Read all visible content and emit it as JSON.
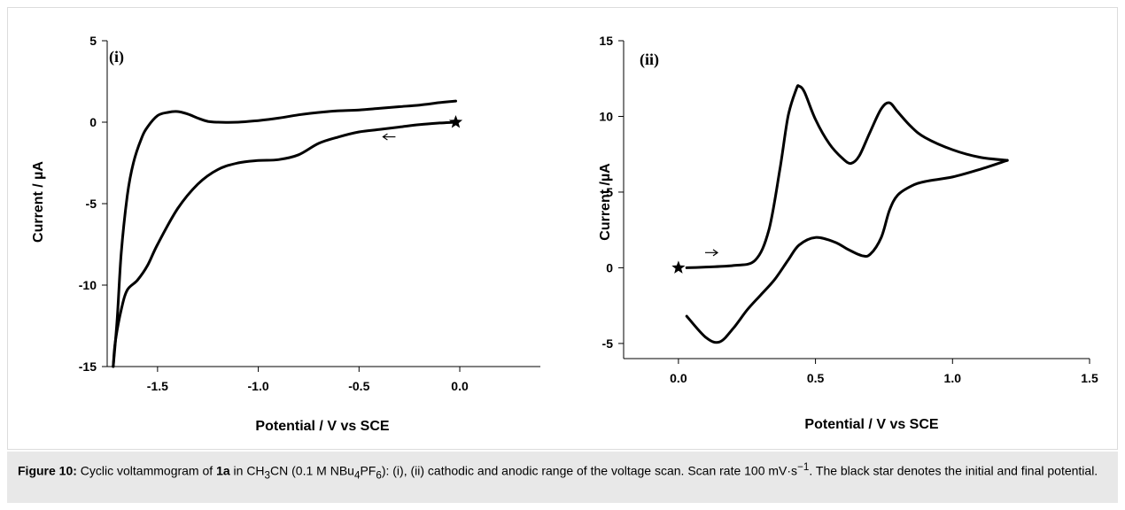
{
  "chart_data": [
    {
      "type": "line",
      "panel_label": "(i)",
      "xlabel": "Potential / V vs SCE",
      "ylabel": "Current / µA",
      "xlim": [
        -1.75,
        0.4
      ],
      "ylim": [
        -15,
        5
      ],
      "xticks": [
        -1.5,
        -1.0,
        -0.5,
        0.0
      ],
      "xtick_labels": [
        "-1.5",
        "-1.0",
        "-0.5",
        "0.0"
      ],
      "yticks": [
        5,
        0,
        -5,
        -10,
        -15
      ],
      "ytick_labels": [
        "5",
        "0",
        "-5",
        "-10",
        "-15"
      ],
      "grid": false,
      "series": [
        {
          "x": [
            -0.02,
            -0.1,
            -0.2,
            -0.3,
            -0.4,
            -0.5,
            -0.6,
            -0.7,
            -0.8,
            -0.9,
            -1.0,
            -1.1,
            -1.2,
            -1.3,
            -1.4,
            -1.5,
            -1.55,
            -1.6,
            -1.65,
            -1.68,
            -1.71,
            -1.72
          ],
          "y": [
            0.0,
            -0.05,
            -0.15,
            -0.3,
            -0.45,
            -0.6,
            -0.9,
            -1.3,
            -2.0,
            -2.3,
            -2.35,
            -2.5,
            -2.9,
            -3.8,
            -5.3,
            -7.5,
            -8.8,
            -9.7,
            -10.3,
            -11.5,
            -13.5,
            -15.0
          ]
        },
        {
          "x": [
            -1.72,
            -1.7,
            -1.68,
            -1.65,
            -1.62,
            -1.58,
            -1.55,
            -1.5,
            -1.45,
            -1.4,
            -1.35,
            -1.3,
            -1.25,
            -1.2,
            -1.1,
            -1.0,
            -0.9,
            -0.8,
            -0.7,
            -0.6,
            -0.5,
            -0.4,
            -0.3,
            -0.2,
            -0.1,
            -0.02
          ],
          "y": [
            -15.0,
            -12.0,
            -8.0,
            -4.5,
            -2.5,
            -1.0,
            -0.3,
            0.4,
            0.6,
            0.65,
            0.5,
            0.25,
            0.05,
            0.0,
            0.0,
            0.1,
            0.25,
            0.45,
            0.6,
            0.7,
            0.75,
            0.85,
            0.95,
            1.05,
            1.2,
            1.3
          ]
        }
      ],
      "annotations": [
        {
          "type": "arrow",
          "direction": "left",
          "x": -0.35,
          "y": -0.9
        },
        {
          "type": "star",
          "label": "initial/final potential",
          "x": -0.02,
          "y": 0.0
        }
      ]
    },
    {
      "type": "line",
      "panel_label": "(ii)",
      "xlabel": "Potential / V vs SCE",
      "ylabel": "Current /µA",
      "xlim": [
        -0.2,
        1.5
      ],
      "ylim": [
        -6,
        15
      ],
      "xticks": [
        0.0,
        0.5,
        1.0,
        1.5
      ],
      "xtick_labels": [
        "0.0",
        "0.5",
        "1.0",
        "1.5"
      ],
      "yticks": [
        15,
        10,
        5,
        0,
        -5
      ],
      "ytick_labels": [
        "15",
        "10",
        "5",
        "0",
        "-5"
      ],
      "grid": false,
      "series": [
        {
          "x": [
            0.03,
            0.1,
            0.2,
            0.28,
            0.33,
            0.37,
            0.4,
            0.43,
            0.44,
            0.46,
            0.5,
            0.55,
            0.6,
            0.63,
            0.66,
            0.7,
            0.74,
            0.77,
            0.8,
            0.85,
            0.9,
            1.0,
            1.1,
            1.2
          ],
          "y": [
            0.0,
            0.05,
            0.15,
            0.5,
            2.5,
            6.5,
            10.0,
            11.8,
            12.0,
            11.6,
            9.8,
            8.2,
            7.2,
            6.9,
            7.4,
            9.0,
            10.5,
            10.9,
            10.3,
            9.3,
            8.6,
            7.8,
            7.3,
            7.1
          ]
        },
        {
          "x": [
            1.2,
            1.1,
            1.0,
            0.9,
            0.85,
            0.8,
            0.77,
            0.74,
            0.7,
            0.67,
            0.62,
            0.57,
            0.5,
            0.44,
            0.4,
            0.35,
            0.3,
            0.25,
            0.2,
            0.15,
            0.1,
            0.03
          ],
          "y": [
            7.1,
            6.5,
            6.0,
            5.7,
            5.4,
            4.8,
            3.8,
            2.0,
            0.9,
            0.8,
            1.2,
            1.7,
            2.0,
            1.5,
            0.5,
            -0.8,
            -1.8,
            -2.8,
            -4.0,
            -4.9,
            -4.6,
            -3.2
          ]
        }
      ],
      "annotations": [
        {
          "type": "arrow",
          "direction": "right",
          "x": 0.12,
          "y": 1.0
        },
        {
          "type": "star",
          "label": "initial/final potential",
          "x": 0.0,
          "y": 0.0
        }
      ]
    }
  ],
  "caption": {
    "figure_label": "Figure 10:",
    "text_1": " Cyclic voltammogram of ",
    "compound": "1a",
    "text_2": " in CH",
    "sub_1": "3",
    "text_3": "CN (0.1 M NBu",
    "sub_2": "4",
    "text_4": "PF",
    "sub_3": "6",
    "text_5": "): (i), (ii) cathodic and anodic range of the voltage scan. Scan rate 100 mV·s",
    "sup_1": "−1",
    "text_6": ". The black star denotes the initial and final potential."
  },
  "colors": {
    "curve": "#000000",
    "caption_background": "#e8e8e8",
    "frame_border": "#dcdcdc"
  }
}
